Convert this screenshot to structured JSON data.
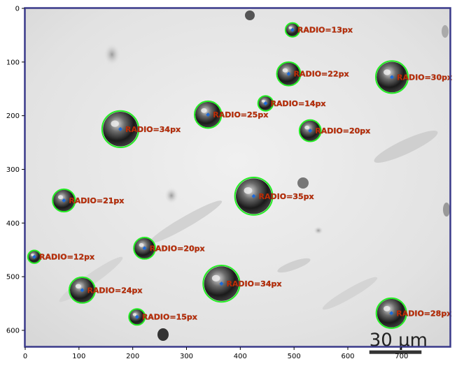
{
  "axes": {
    "x_ticks": [
      "0",
      "100",
      "200",
      "300",
      "400",
      "500",
      "600",
      "700"
    ],
    "y_ticks": [
      "0",
      "100",
      "200",
      "300",
      "400",
      "500",
      "600"
    ],
    "x_range": [
      0,
      790
    ],
    "y_range": [
      0,
      630
    ],
    "frame_color": "#3a3a8a"
  },
  "scale_bar": {
    "label": "30 µm",
    "x_start": 640,
    "x_end": 737,
    "y": 640
  },
  "detections": [
    {
      "x": 497,
      "y": 40,
      "r": 13,
      "label": "RADIO=13px"
    },
    {
      "x": 490,
      "y": 122,
      "r": 22,
      "label": "RADIO=22px"
    },
    {
      "x": 682,
      "y": 128,
      "r": 30,
      "label": "RADIO=30px"
    },
    {
      "x": 447,
      "y": 177,
      "r": 14,
      "label": "RADIO=14px"
    },
    {
      "x": 340,
      "y": 198,
      "r": 25,
      "label": "RADIO=25px"
    },
    {
      "x": 177,
      "y": 225,
      "r": 34,
      "label": "RADIO=34px"
    },
    {
      "x": 530,
      "y": 228,
      "r": 20,
      "label": "RADIO=20px"
    },
    {
      "x": 425,
      "y": 350,
      "r": 35,
      "label": "RADIO=35px"
    },
    {
      "x": 72,
      "y": 358,
      "r": 21,
      "label": "RADIO=21px"
    },
    {
      "x": 222,
      "y": 447,
      "r": 20,
      "label": "RADIO=20px"
    },
    {
      "x": 17,
      "y": 463,
      "r": 12,
      "label": "RADIO=12px"
    },
    {
      "x": 365,
      "y": 513,
      "r": 34,
      "label": "RADIO=34px"
    },
    {
      "x": 106,
      "y": 525,
      "r": 24,
      "label": "RADIO=24px"
    },
    {
      "x": 208,
      "y": 575,
      "r": 15,
      "label": "RADIO=15px"
    },
    {
      "x": 681,
      "y": 568,
      "r": 28,
      "label": "RADIO=28px"
    }
  ],
  "colors": {
    "circle": "#22ee22",
    "center": "#1e6ad8",
    "label": "#c0300a"
  }
}
